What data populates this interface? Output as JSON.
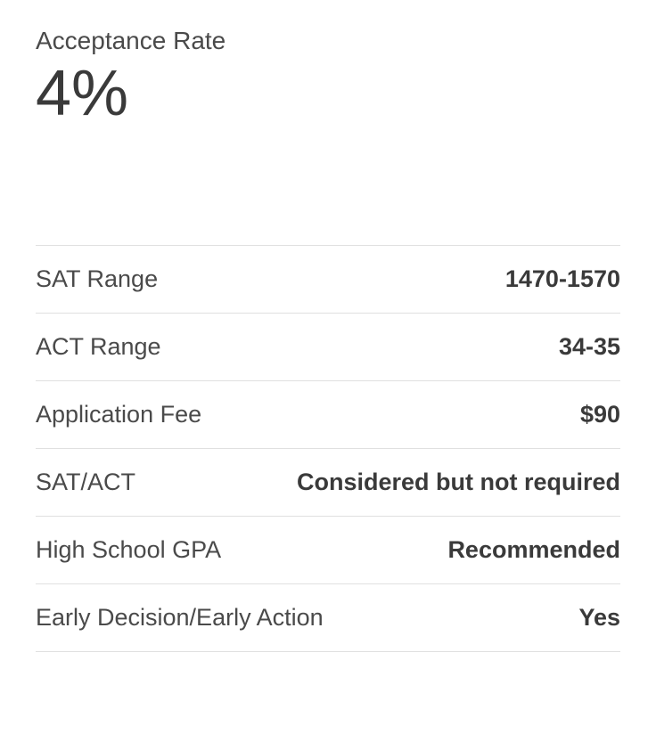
{
  "header": {
    "label": "Acceptance Rate",
    "value": "4%"
  },
  "rows": [
    {
      "label": "SAT Range",
      "value": "1470-1570"
    },
    {
      "label": "ACT Range",
      "value": "34-35"
    },
    {
      "label": "Application Fee",
      "value": "$90"
    },
    {
      "label": "SAT/ACT",
      "value": "Considered but not required"
    },
    {
      "label": "High School GPA",
      "value": "Recommended"
    },
    {
      "label": "Early Decision/Early Action",
      "value": "Yes"
    }
  ],
  "styling": {
    "background_color": "#ffffff",
    "label_color": "#4a4a4a",
    "value_color": "#3a3a3a",
    "border_color": "#e0e0e0",
    "header_label_fontsize": 28,
    "header_value_fontsize": 72,
    "row_fontsize": 27,
    "row_label_weight": 400,
    "row_value_weight": 700
  }
}
